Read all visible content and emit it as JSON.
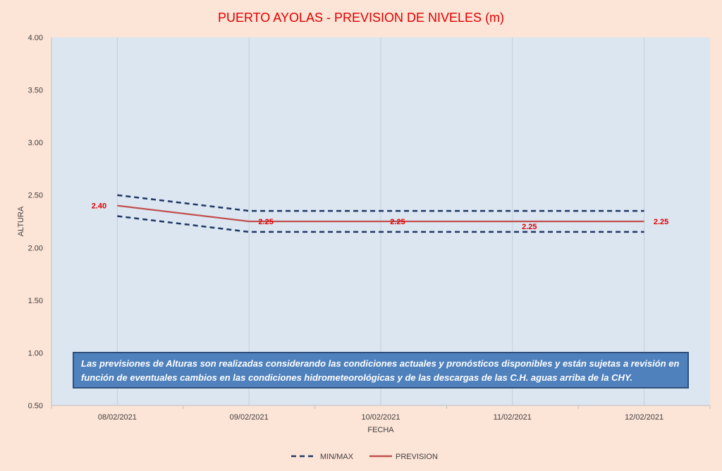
{
  "chart_data": {
    "type": "line",
    "title": "PUERTO AYOLAS - PREVISION DE NIVELES (m)",
    "xlabel": "FECHA",
    "ylabel": "ALTURA",
    "categories": [
      "08/02/2021",
      "09/02/2021",
      "10/02/2021",
      "11/02/2021",
      "12/02/2021"
    ],
    "ylim": [
      0.5,
      4.0
    ],
    "yticks": [
      "0.50",
      "1.00",
      "1.50",
      "2.00",
      "2.50",
      "3.00",
      "3.50",
      "4.00"
    ],
    "series": [
      {
        "name": "PREVISION",
        "values": [
          2.4,
          2.25,
          2.25,
          2.25,
          2.25
        ],
        "labels": [
          "2.40",
          "2.25",
          "2.25",
          "2.25",
          "2.25"
        ],
        "color": "#c0504d",
        "style": "solid"
      },
      {
        "name": "MIN/MAX",
        "values": [
          2.5,
          2.35,
          2.35,
          2.35,
          2.35
        ],
        "color": "#1f3864",
        "style": "dashed"
      },
      {
        "values": [
          2.3,
          2.15,
          2.15,
          2.15,
          2.15
        ],
        "color": "#1f3864",
        "style": "dashed"
      }
    ],
    "legend": {
      "placement": "bottom",
      "items": [
        "MIN/MAX",
        "PREVISION"
      ]
    },
    "grid": {
      "vertical": true,
      "horizontal": false
    },
    "colors": {
      "background": "#fce4d6",
      "plot_area": "#dce6f1",
      "title": "#e00000",
      "label": "#e00000"
    }
  },
  "note": "Las previsiones de Alturas son realizadas considerando las condiciones actuales y pronósticos disponibles y están sujetas a revisión en función de eventuales cambios en las condiciones hidrometeorológicas y de las descargas de las C.H. aguas arriba de la CHY."
}
